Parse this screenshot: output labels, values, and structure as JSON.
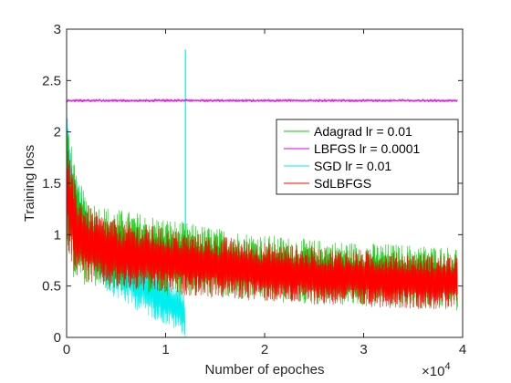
{
  "chart_data": {
    "type": "line",
    "title": "",
    "xlabel": "Number of epoches",
    "ylabel": "Training loss",
    "xlim": [
      0,
      40000
    ],
    "ylim": [
      0,
      3
    ],
    "x_ticks": [
      0,
      10000,
      20000,
      30000,
      40000
    ],
    "x_tick_labels": [
      "0",
      "1",
      "2",
      "3",
      "4"
    ],
    "x_multiplier_base": "×10",
    "x_multiplier_exp": "4",
    "y_ticks": [
      0,
      0.5,
      1,
      1.5,
      2,
      2.5,
      3
    ],
    "y_tick_labels": [
      "0",
      "0.5",
      "1",
      "1.5",
      "2",
      "2.5",
      "3"
    ],
    "grid": false,
    "legend_position": "right",
    "x_end": 39500,
    "series": [
      {
        "name": "Adagrad lr = 0.01",
        "color": "#00cc00",
        "noisy": true,
        "x": [
          0,
          500,
          1000,
          2000,
          3000,
          5000,
          8000,
          12000,
          16000,
          20000,
          25000,
          30000,
          35000,
          39500
        ],
        "upper": [
          2.3,
          1.9,
          1.55,
          1.4,
          1.3,
          1.25,
          1.2,
          1.12,
          1.05,
          1.0,
          0.95,
          0.92,
          0.9,
          0.88
        ],
        "lower": [
          0.8,
          0.6,
          0.55,
          0.5,
          0.48,
          0.45,
          0.42,
          0.4,
          0.37,
          0.34,
          0.32,
          0.3,
          0.28,
          0.26
        ]
      },
      {
        "name": "LBFGS lr = 0.0001",
        "color": "#dd00dd",
        "noisy": true,
        "x": [
          0,
          39500
        ],
        "upper": [
          2.32,
          2.32
        ],
        "lower": [
          2.29,
          2.29
        ]
      },
      {
        "name": "SGD lr = 0.01",
        "color": "#00eeee",
        "noisy": true,
        "x": [
          0,
          300,
          800,
          1500,
          2500,
          4000,
          6000,
          8000,
          10000,
          11500,
          11900,
          12000,
          12200,
          39500
        ],
        "upper": [
          2.3,
          1.9,
          1.6,
          1.4,
          1.2,
          1.05,
          0.9,
          0.75,
          0.6,
          0.5,
          0.45,
          0.0,
          0.0,
          0.0
        ],
        "lower": [
          1.8,
          1.3,
          1.1,
          0.8,
          0.6,
          0.45,
          0.32,
          0.22,
          0.12,
          0.05,
          0.02,
          0.0,
          0.0,
          0.0
        ],
        "spike": {
          "x": 12000,
          "y": 2.8
        }
      },
      {
        "name": "SdLBFGS",
        "color": "#ff0000",
        "noisy": true,
        "x": [
          0,
          500,
          1000,
          2000,
          3000,
          5000,
          8000,
          12000,
          16000,
          20000,
          25000,
          30000,
          35000,
          39500
        ],
        "upper": [
          2.0,
          1.65,
          1.45,
          1.3,
          1.22,
          1.15,
          1.1,
          1.03,
          0.98,
          0.93,
          0.88,
          0.85,
          0.82,
          0.8
        ],
        "lower": [
          0.9,
          0.7,
          0.6,
          0.53,
          0.5,
          0.47,
          0.44,
          0.41,
          0.38,
          0.35,
          0.32,
          0.3,
          0.28,
          0.26
        ]
      }
    ]
  }
}
